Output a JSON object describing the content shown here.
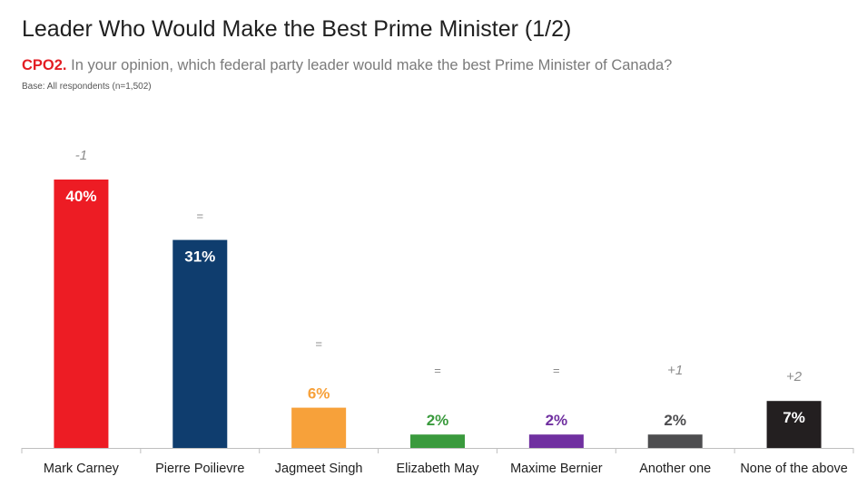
{
  "header": {
    "title": "Leader Who Would Make the Best Prime Minister (1/2)",
    "question_code": "CPO2.",
    "question_text": " In your opinion, which federal party leader would make the best Prime Minister of Canada?",
    "base": "Base: All respondents (n=1,502)"
  },
  "chart_data": {
    "type": "bar",
    "categories": [
      "Mark Carney",
      "Pierre Poilievre",
      "Jagmeet Singh",
      "Elizabeth May",
      "Maxime Bernier",
      "Another one",
      "None of the above"
    ],
    "values": [
      40,
      31,
      6,
      2,
      2,
      2,
      7
    ],
    "value_labels": [
      "40%",
      "31%",
      "6%",
      "2%",
      "2%",
      "2%",
      "7%"
    ],
    "change_labels": [
      "-1",
      "=",
      "=",
      "=",
      "=",
      "+1",
      "+2"
    ],
    "colors": [
      "#ed1c24",
      "#0f3d6e",
      "#f7a13a",
      "#3a9a3d",
      "#7030a0",
      "#4d4d4f",
      "#231f20"
    ],
    "label_colors": [
      "#ffffff",
      "#ffffff",
      "#f7a13a",
      "#3a9a3d",
      "#7030a0",
      "#4d4d4f",
      "#ffffff"
    ],
    "label_inside": [
      true,
      true,
      false,
      false,
      false,
      false,
      true
    ],
    "ylim": [
      0,
      40
    ],
    "grid": false,
    "legend": "none"
  }
}
